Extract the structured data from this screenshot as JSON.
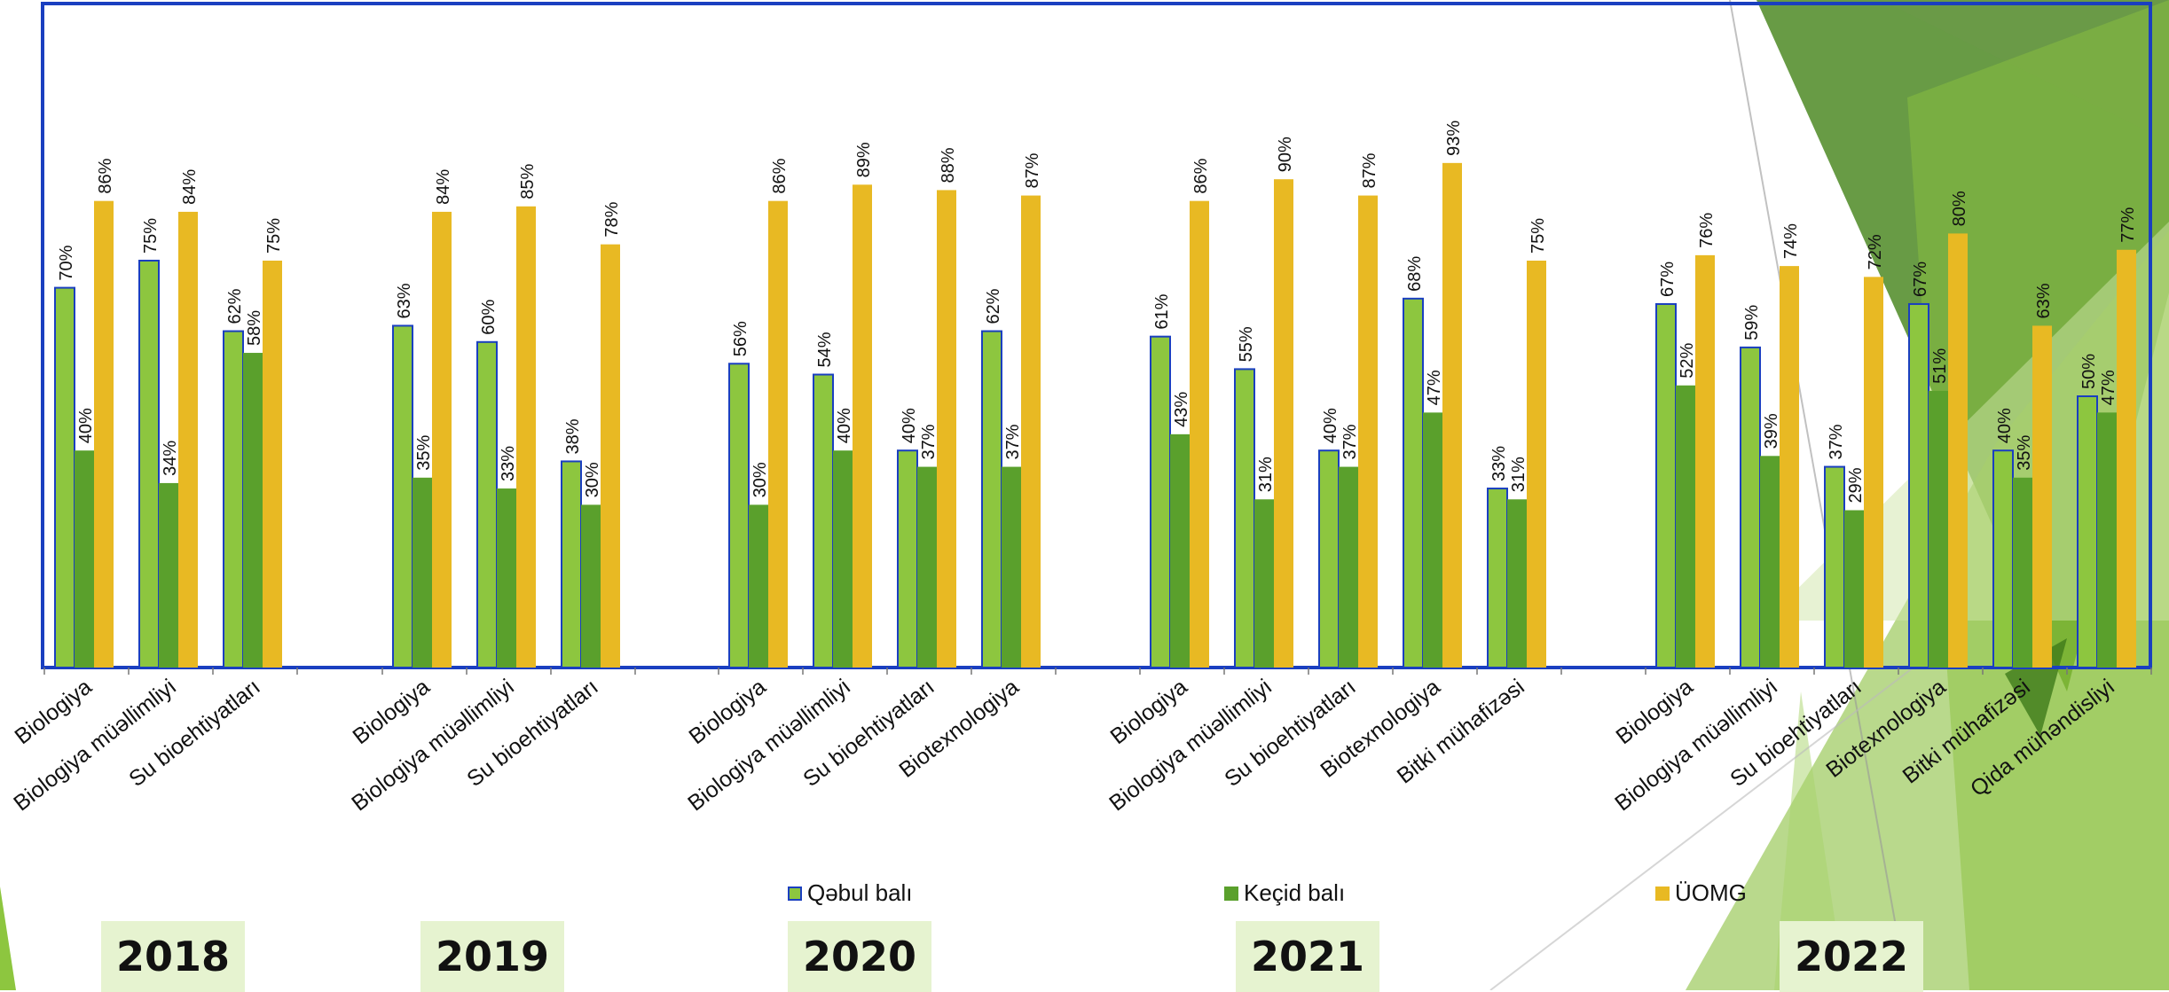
{
  "chart_data": {
    "type": "bar",
    "ylim": [
      0,
      100
    ],
    "series_names": [
      "Qəbul balı",
      "Keçid balı",
      "ÜOMG"
    ],
    "colors": {
      "qebul": "#8dc63f",
      "kecid": "#5aa02c",
      "uomg": "#e8b923",
      "frame": "#1a3fc0"
    },
    "groups": [
      {
        "year": "2018",
        "categories": [
          "Biologiya",
          "Biologiya müəllimliyi",
          "Su bioehtiyatları"
        ],
        "qebul": [
          70,
          75,
          62
        ],
        "kecid": [
          40,
          34,
          58
        ],
        "uomg": [
          86,
          84,
          75
        ],
        "qebul_labels": [
          "70%",
          "75%",
          "62%"
        ],
        "kecid_labels": [
          "40%",
          "34%",
          "58%"
        ],
        "uomg_labels": [
          "86%",
          "84%",
          "75%"
        ]
      },
      {
        "year": "2019",
        "categories": [
          "Biologiya",
          "Biologiya müəllimliyi",
          "Su bioehtiyatları"
        ],
        "qebul": [
          63,
          60,
          38
        ],
        "kecid": [
          35,
          33,
          30
        ],
        "uomg": [
          84,
          85,
          78
        ],
        "qebul_labels": [
          "63%",
          "60%",
          "38%"
        ],
        "kecid_labels": [
          "35%",
          "33%",
          "30%"
        ],
        "uomg_labels": [
          "84%",
          "85%",
          "78%"
        ]
      },
      {
        "year": "2020",
        "categories": [
          "Biologiya",
          "Biologiya müəllimliyi",
          "Su bioehtiyatları",
          "Biotexnologiya"
        ],
        "qebul": [
          56,
          54,
          40,
          62
        ],
        "kecid": [
          30,
          40,
          37,
          37
        ],
        "uomg": [
          86,
          89,
          88,
          87
        ],
        "qebul_labels": [
          "56%",
          "54%",
          "40%",
          "62%"
        ],
        "kecid_labels": [
          "30%",
          "40%",
          "37%",
          "37%"
        ],
        "uomg_labels": [
          "86%",
          "89%",
          "88%",
          "87%"
        ]
      },
      {
        "year": "2021",
        "categories": [
          "Biologiya",
          "Biologiya müəllimliyi",
          "Su bioehtiyatları",
          "Biotexnologiya",
          "Bitki mühafizəsi"
        ],
        "qebul": [
          61,
          55,
          40,
          68,
          33
        ],
        "kecid": [
          43,
          31,
          37,
          47,
          31
        ],
        "uomg": [
          86,
          90,
          87,
          93,
          75
        ],
        "qebul_labels": [
          "61%",
          "55%",
          "40%",
          "68%",
          "33%"
        ],
        "kecid_labels": [
          "43%",
          "31%",
          "37%",
          "47%",
          "31%"
        ],
        "uomg_labels": [
          "86%",
          "90%",
          "87%",
          "93%",
          "75%"
        ]
      },
      {
        "year": "2022",
        "categories": [
          "Biologiya",
          "Biologiya müəllimliyi",
          "Su bioehtiyatları",
          "Biotexnologiya",
          "Bitki mühafizəsi",
          "Qida mühəndisliyi"
        ],
        "qebul": [
          67,
          59,
          37,
          67,
          40,
          50
        ],
        "kecid": [
          52,
          39,
          29,
          51,
          35,
          47
        ],
        "uomg": [
          76,
          74,
          72,
          80,
          63,
          77
        ],
        "qebul_labels": [
          "67%",
          "59%",
          "37%",
          "67%",
          "40%",
          "50%"
        ],
        "kecid_labels": [
          "52%",
          "39%",
          "29%",
          "51%",
          "35%",
          "47%"
        ],
        "uomg_labels": [
          "76%",
          "74%",
          "72%",
          "80%",
          "63%",
          "77%"
        ]
      }
    ]
  }
}
